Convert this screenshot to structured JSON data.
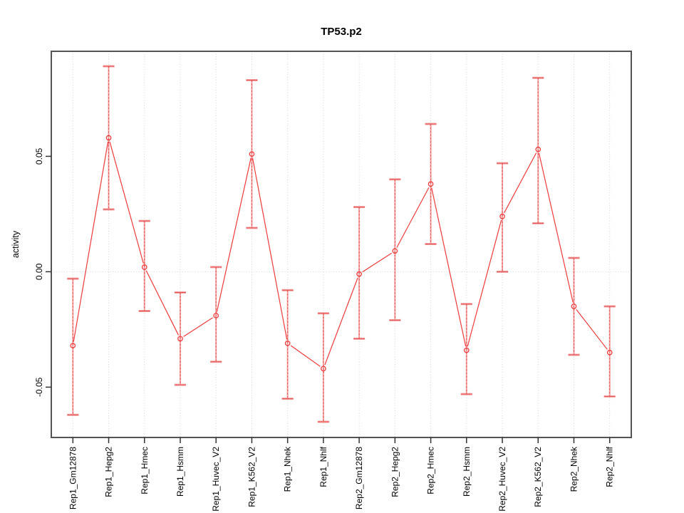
{
  "chart_data": {
    "type": "line",
    "title": "TP53.p2",
    "xlabel": "",
    "ylabel": "activity",
    "categories": [
      "Rep1_Gm12878",
      "Rep1_Hepg2",
      "Rep1_Hmec",
      "Rep1_Hsmm",
      "Rep1_Huvec_V2",
      "Rep1_K562_V2",
      "Rep1_Nhek",
      "Rep1_Nhlf",
      "Rep2_Gm12878",
      "Rep2_Hepg2",
      "Rep2_Hmec",
      "Rep2_Hsmm",
      "Rep2_Huvec_V2",
      "Rep2_K562_V2",
      "Rep2_Nhek",
      "Rep2_Nhlf"
    ],
    "series": [
      {
        "name": "activity",
        "values": [
          -0.032,
          0.058,
          0.002,
          -0.029,
          -0.019,
          0.051,
          -0.031,
          -0.042,
          -0.001,
          0.009,
          0.038,
          -0.034,
          0.024,
          0.053,
          -0.015,
          -0.035
        ],
        "error_upper": [
          -0.003,
          0.089,
          0.022,
          -0.009,
          0.002,
          0.083,
          -0.008,
          -0.018,
          0.028,
          0.04,
          0.064,
          -0.014,
          0.047,
          0.084,
          0.006,
          -0.015
        ],
        "error_lower": [
          -0.062,
          0.027,
          -0.017,
          -0.049,
          -0.039,
          0.019,
          -0.055,
          -0.065,
          -0.029,
          -0.021,
          0.012,
          -0.053,
          0.0,
          0.021,
          -0.036,
          -0.054
        ]
      }
    ],
    "y_ticks": [
      {
        "value": -0.05,
        "label": "-0.05"
      },
      {
        "value": 0.0,
        "label": "0.00"
      },
      {
        "value": 0.05,
        "label": "0.05"
      }
    ],
    "ylim": [
      -0.0718,
      0.0955
    ],
    "grid": {
      "vertical_dotted_per_category": true,
      "horizontal_dotted_at_zero": true
    },
    "legend": "none",
    "marker": "open-circle",
    "colors": {
      "series": "#ee3b3b",
      "error_bar": "#f6a2a2",
      "error_bar_dash": "#e05252",
      "gridline": "#d4d4d4",
      "axis_frame": "#545454",
      "tick": "#333333",
      "text": "#000000",
      "background": "#ffffff"
    }
  }
}
